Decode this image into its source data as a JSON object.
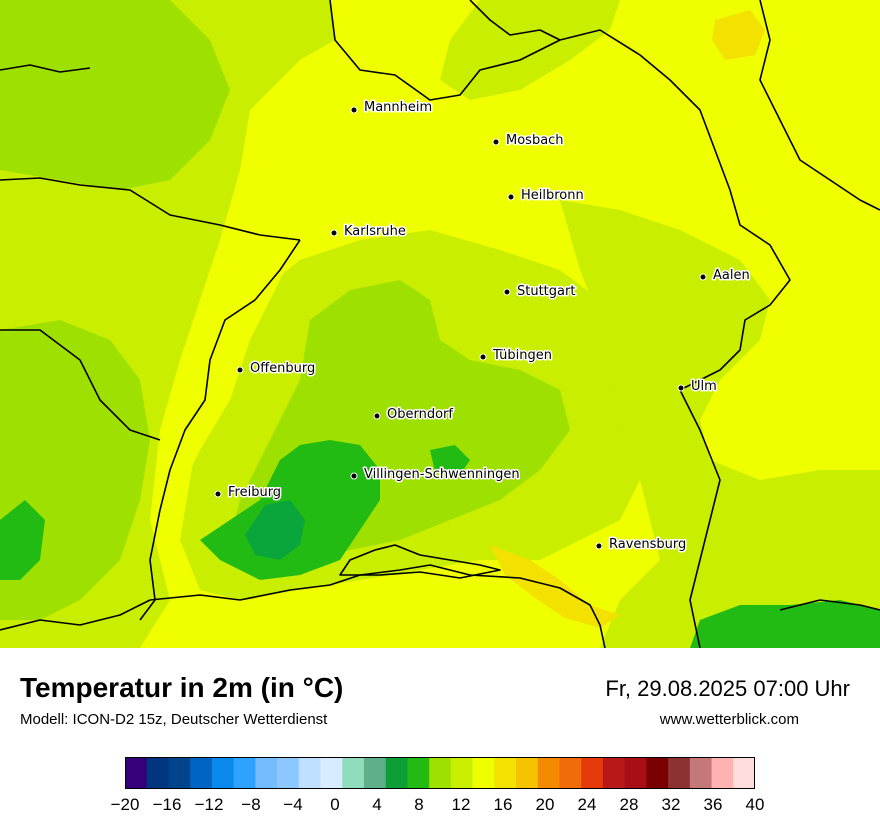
{
  "map": {
    "cities": [
      {
        "name": "Mannheim"
      },
      {
        "name": "Mosbach"
      },
      {
        "name": "Heilbronn"
      },
      {
        "name": "Karlsruhe"
      },
      {
        "name": "Aalen"
      },
      {
        "name": "Stuttgart"
      },
      {
        "name": "Tübingen"
      },
      {
        "name": "Offenburg"
      },
      {
        "name": "Ulm"
      },
      {
        "name": "Oberndorf"
      },
      {
        "name": "Villingen-Schwenningen"
      },
      {
        "name": "Freiburg"
      },
      {
        "name": "Ravensburg"
      }
    ],
    "colors": {
      "base": "#f0ff00",
      "warm_yellow": "#f3e100",
      "light_green": "#c9ee00",
      "mid_green": "#9ee000",
      "green": "#22bb13",
      "dark_green": "#0aa63c",
      "border": "#000000"
    }
  },
  "footer": {
    "title": "Temperatur in 2m (in °C)",
    "subtitle": "Modell: ICON-D2 15z, Deutscher Wetterdienst",
    "datetime": "Fr, 29.08.2025 07:00 Uhr",
    "website": "www.wetterblick.com"
  },
  "scale": {
    "unit": "°C",
    "min": -20,
    "max": 40,
    "step": 2,
    "colors": [
      "#36007a",
      "#003580",
      "#00448c",
      "#0064c3",
      "#0a89ec",
      "#2ea2ff",
      "#75bcff",
      "#8cc8ff",
      "#bfe0ff",
      "#d8ecff",
      "#90dcbc",
      "#5fb08a",
      "#0c9f35",
      "#22bb13",
      "#9ee000",
      "#c9ee00",
      "#f0ff00",
      "#f3e100",
      "#f5c300",
      "#f38a00",
      "#f06b0a",
      "#e63a0a",
      "#b81818",
      "#a80e15",
      "#7a0000",
      "#8c3232",
      "#c57878",
      "#ffb2b2",
      "#ffdcdc"
    ],
    "tick_labels": [
      "−20",
      "−16",
      "−12",
      "−8",
      "−4",
      "0",
      "4",
      "8",
      "12",
      "16",
      "20",
      "24",
      "28",
      "32",
      "36",
      "40"
    ]
  }
}
